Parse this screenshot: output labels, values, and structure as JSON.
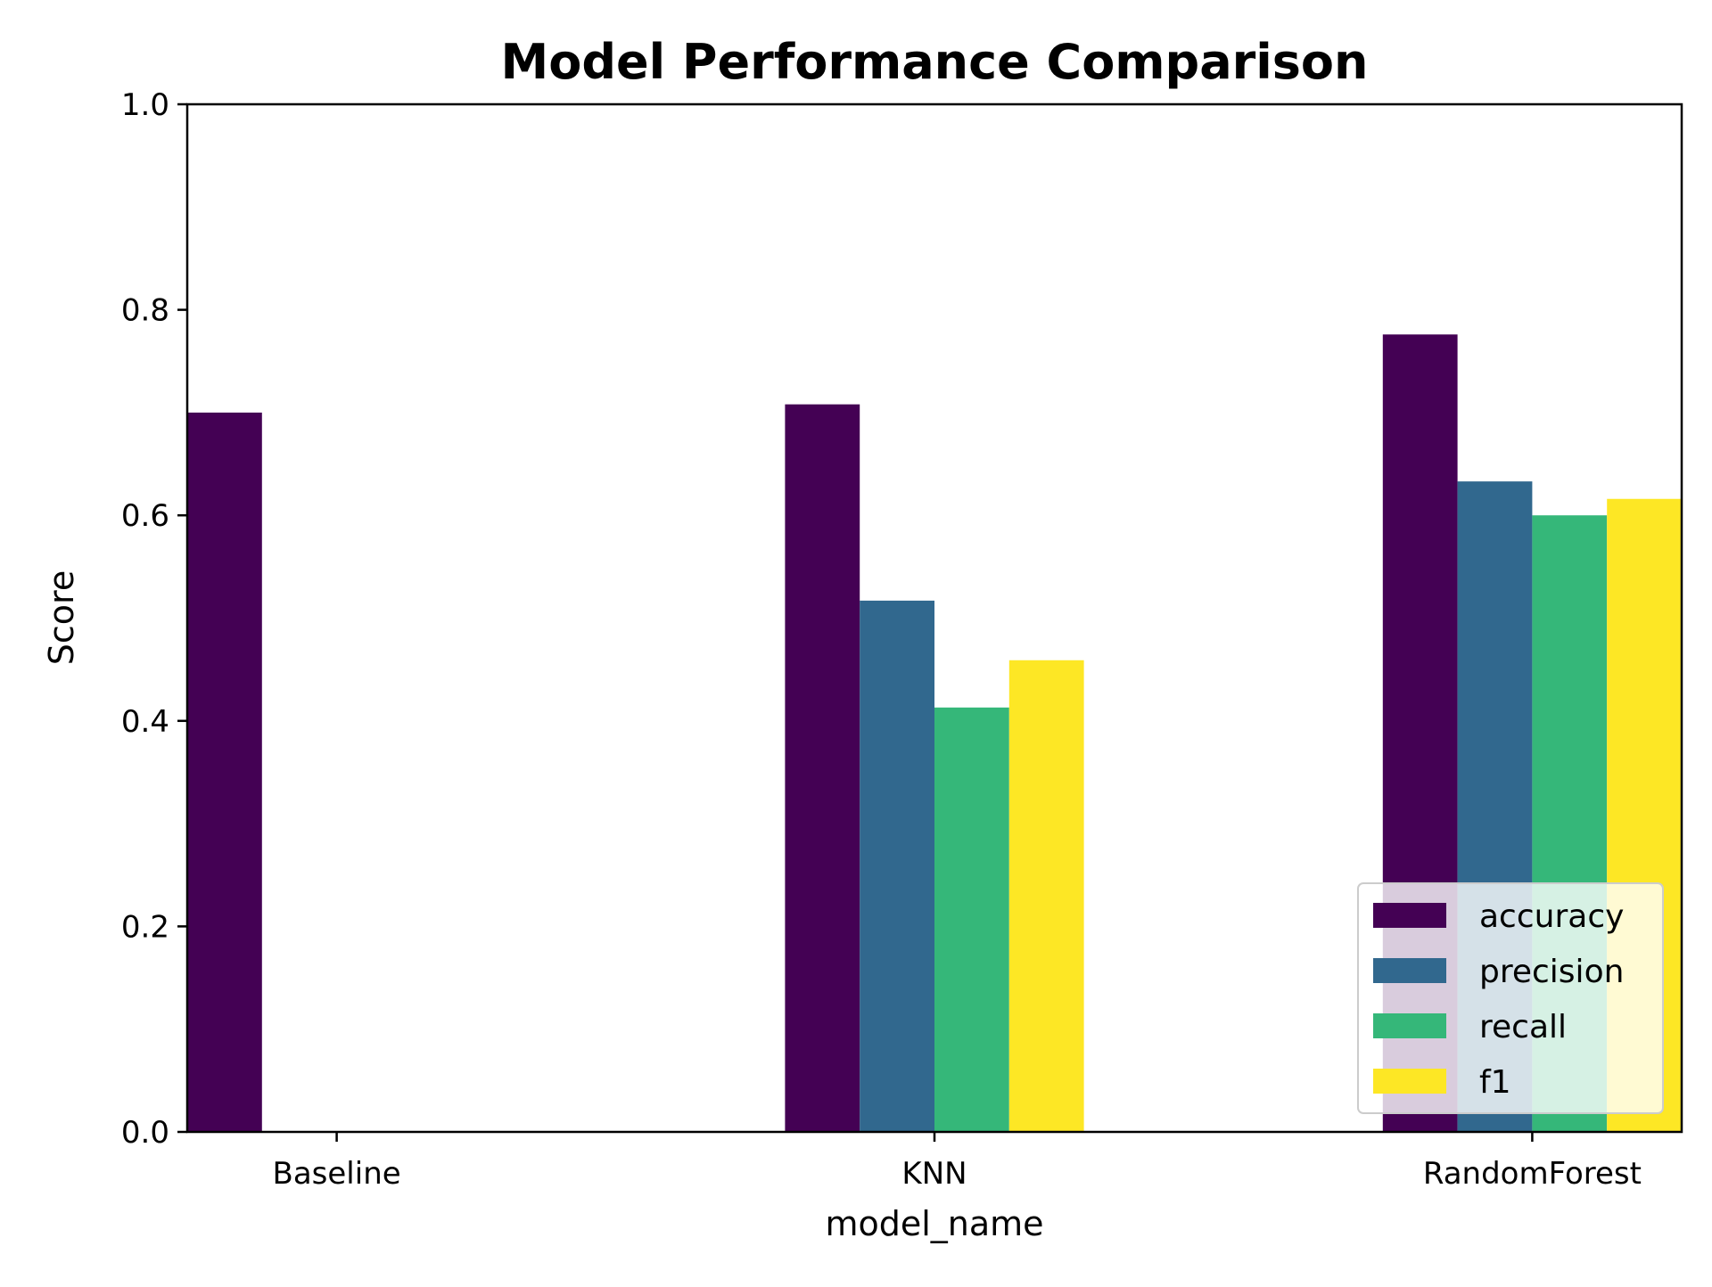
{
  "chart_data": {
    "type": "bar",
    "title": "Model Performance Comparison",
    "xlabel": "model_name",
    "ylabel": "Score",
    "ylim": [
      0,
      1
    ],
    "yticks": [
      "0.0",
      "0.2",
      "0.4",
      "0.6",
      "0.8",
      "1.0"
    ],
    "grid": false,
    "legend_position": "lower-right",
    "categories": [
      "Baseline",
      "KNN",
      "RandomForest"
    ],
    "series": [
      {
        "name": "accuracy",
        "color": "#440154",
        "values": [
          0.7,
          0.708,
          0.776
        ]
      },
      {
        "name": "precision",
        "color": "#31688e",
        "values": [
          null,
          0.517,
          0.633
        ]
      },
      {
        "name": "recall",
        "color": "#35b779",
        "values": [
          null,
          0.413,
          0.6
        ]
      },
      {
        "name": "f1",
        "color": "#fde725",
        "values": [
          null,
          0.459,
          0.616
        ]
      }
    ]
  }
}
